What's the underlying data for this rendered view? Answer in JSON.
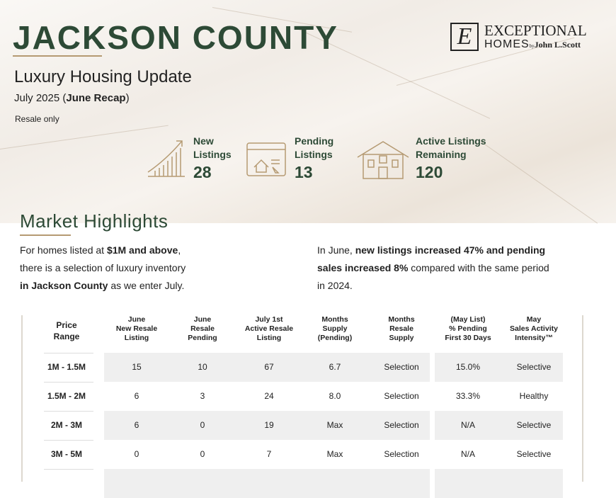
{
  "header": {
    "title": "JACKSON COUNTY",
    "subtitle": "Luxury Housing Update",
    "date_prefix": "July 2025 (",
    "date_bold": "June Recap",
    "date_suffix": ")",
    "note": "Resale only"
  },
  "logo": {
    "mark": "E",
    "line1": "EXCEPTIONAL",
    "line2": "HOMES",
    "by": "by",
    "brand": "John L.Scott"
  },
  "stats": [
    {
      "label1": "New",
      "label2": "Listings",
      "value": "28",
      "icon": "rising-bar-chart-icon"
    },
    {
      "label1": "Pending",
      "label2": "Listings",
      "value": "13",
      "icon": "browser-house-cursor-icon"
    },
    {
      "label1": "Active Listings",
      "label2": "Remaining",
      "value": "120",
      "icon": "house-icon"
    }
  ],
  "highlights": {
    "title": "Market Highlights",
    "left": {
      "t1": "For homes listed at ",
      "b1": "$1M and above",
      "t2": ",",
      "l2": "there is a selection of luxury inventory",
      "b3": "in Jackson County",
      "t3": " as we enter July."
    },
    "right": {
      "t1": "In June, ",
      "b1": "new listings increased 47% and pending",
      "b2": "sales increased 8%",
      "t2": " compared with the same period",
      "l3": "in 2024."
    }
  },
  "table": {
    "headers": [
      [
        "Price",
        "Range"
      ],
      [
        "June",
        "New Resale",
        "Listing"
      ],
      [
        "June",
        "Resale",
        "Pending"
      ],
      [
        "July 1st",
        "Active Resale",
        "Listing"
      ],
      [
        "Months",
        "Supply",
        "(Pending)"
      ],
      [
        "Months",
        "Resale",
        "Supply"
      ],
      [
        "(May List)",
        "% Pending",
        "First 30 Days"
      ],
      [
        "May",
        "Sales Activity",
        "Intensity™"
      ]
    ],
    "rows": [
      [
        "1M - 1.5M",
        "15",
        "10",
        "67",
        "6.7",
        "Selection",
        "15.0%",
        "Selective"
      ],
      [
        "1.5M - 2M",
        "6",
        "3",
        "24",
        "8.0",
        "Selection",
        "33.3%",
        "Healthy"
      ],
      [
        "2M - 3M",
        "6",
        "0",
        "19",
        "Max",
        "Selection",
        "N/A",
        "Selective"
      ],
      [
        "3M - 5M",
        "0",
        "0",
        "7",
        "Max",
        "Selection",
        "N/A",
        "Selective"
      ]
    ]
  },
  "colors": {
    "accent": "#2d4a36",
    "gold": "#b59a72",
    "row_shade": "#efefef"
  }
}
